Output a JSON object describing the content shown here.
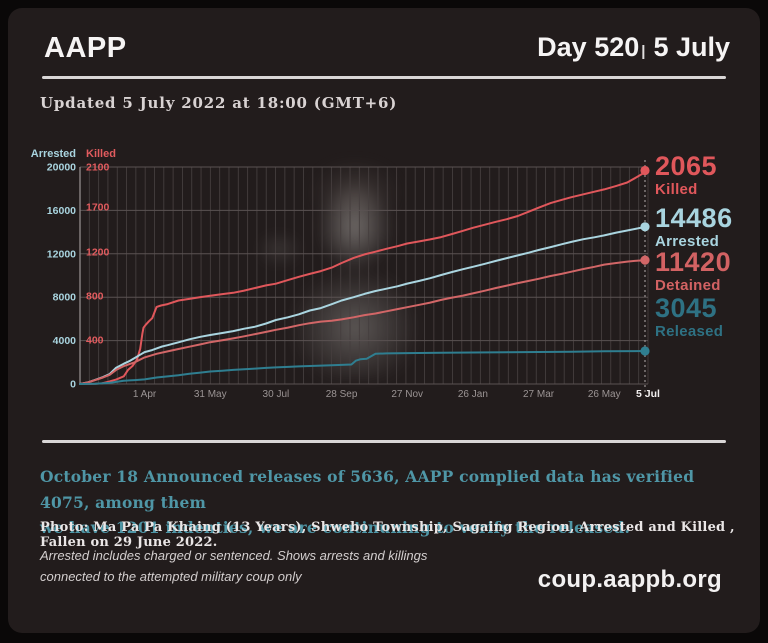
{
  "header": {
    "brand": "AAPP",
    "day_counter": "Day 520",
    "separator": "|",
    "date": "5 July"
  },
  "updated_line": "Updated 5 July 2022 at 18:00 (GMT+6)",
  "chart_data": {
    "type": "line",
    "title": "",
    "grid": true,
    "vertical_gridlines": 62,
    "x_axis": {
      "total_days": 519,
      "labels": [
        {
          "text": "1 Apr",
          "day": 59,
          "emphasis": false
        },
        {
          "text": "31 May",
          "day": 119,
          "emphasis": false
        },
        {
          "text": "30 Jul",
          "day": 179,
          "emphasis": false
        },
        {
          "text": "28 Sep",
          "day": 239,
          "emphasis": false
        },
        {
          "text": "27 Nov",
          "day": 299,
          "emphasis": false
        },
        {
          "text": "26 Jan",
          "day": 359,
          "emphasis": false
        },
        {
          "text": "27 Mar",
          "day": 419,
          "emphasis": false
        },
        {
          "text": "26 May",
          "day": 479,
          "emphasis": false
        },
        {
          "text": "5 Jul",
          "day": 519,
          "emphasis": true
        }
      ]
    },
    "y_axis_left": {
      "title": "Arrested",
      "ticks": [
        0,
        4000,
        8000,
        12000,
        16000,
        20000
      ],
      "range": [
        0,
        20000
      ],
      "color": "#a9d4df"
    },
    "y_axis_inner": {
      "title": "Killed",
      "ticks": [
        400,
        800,
        1200,
        1700,
        2100
      ],
      "range": [
        0,
        2100
      ],
      "color": "#e15b5e"
    },
    "series": [
      {
        "name": "Killed",
        "axis": "killed",
        "color": "#e0575b",
        "label_color": "#e0575b",
        "end_value": 2065,
        "end_value_text": "2065",
        "label": "Killed",
        "points": [
          [
            0,
            0
          ],
          [
            14,
            2
          ],
          [
            20,
            5
          ],
          [
            27,
            23
          ],
          [
            33,
            40
          ],
          [
            40,
            70
          ],
          [
            44,
            130
          ],
          [
            48,
            164
          ],
          [
            52,
            220
          ],
          [
            55,
            320
          ],
          [
            57,
            459
          ],
          [
            58,
            512
          ],
          [
            60,
            538
          ],
          [
            63,
            570
          ],
          [
            66,
            598
          ],
          [
            70,
            701
          ],
          [
            74,
            714
          ],
          [
            80,
            726
          ],
          [
            90,
            759
          ],
          [
            100,
            774
          ],
          [
            110,
            790
          ],
          [
            119,
            802
          ],
          [
            130,
            817
          ],
          [
            140,
            829
          ],
          [
            150,
            849
          ],
          [
            160,
            873
          ],
          [
            170,
            896
          ],
          [
            179,
            912
          ],
          [
            190,
            945
          ],
          [
            200,
            975
          ],
          [
            210,
            1001
          ],
          [
            220,
            1026
          ],
          [
            230,
            1058
          ],
          [
            239,
            1100
          ],
          [
            250,
            1146
          ],
          [
            260,
            1178
          ],
          [
            270,
            1203
          ],
          [
            280,
            1236
          ],
          [
            290,
            1265
          ],
          [
            299,
            1295
          ],
          [
            310,
            1318
          ],
          [
            320,
            1340
          ],
          [
            330,
            1366
          ],
          [
            340,
            1400
          ],
          [
            350,
            1436
          ],
          [
            359,
            1469
          ],
          [
            370,
            1503
          ],
          [
            380,
            1536
          ],
          [
            390,
            1564
          ],
          [
            400,
            1600
          ],
          [
            410,
            1648
          ],
          [
            419,
            1692
          ],
          [
            430,
            1739
          ],
          [
            440,
            1771
          ],
          [
            449,
            1798
          ],
          [
            460,
            1827
          ],
          [
            470,
            1853
          ],
          [
            479,
            1876
          ],
          [
            490,
            1911
          ],
          [
            500,
            1945
          ],
          [
            510,
            2007
          ],
          [
            519,
            2065
          ]
        ]
      },
      {
        "name": "Arrested",
        "axis": "arrested",
        "color": "#aad5e0",
        "label_color": "#a9d4df",
        "end_value": 14486,
        "end_value_text": "14486",
        "label": "Arrested",
        "points": [
          [
            0,
            0
          ],
          [
            7,
            150
          ],
          [
            14,
            384
          ],
          [
            21,
            640
          ],
          [
            27,
            900
          ],
          [
            33,
            1498
          ],
          [
            40,
            1873
          ],
          [
            45,
            2100
          ],
          [
            50,
            2400
          ],
          [
            55,
            2700
          ],
          [
            59,
            2940
          ],
          [
            65,
            3100
          ],
          [
            70,
            3280
          ],
          [
            75,
            3460
          ],
          [
            80,
            3580
          ],
          [
            90,
            3843
          ],
          [
            100,
            4120
          ],
          [
            110,
            4350
          ],
          [
            119,
            4515
          ],
          [
            130,
            4700
          ],
          [
            140,
            4880
          ],
          [
            150,
            5100
          ],
          [
            160,
            5280
          ],
          [
            170,
            5580
          ],
          [
            179,
            5900
          ],
          [
            190,
            6150
          ],
          [
            200,
            6420
          ],
          [
            210,
            6770
          ],
          [
            220,
            7000
          ],
          [
            230,
            7355
          ],
          [
            239,
            7700
          ],
          [
            250,
            8000
          ],
          [
            260,
            8300
          ],
          [
            270,
            8571
          ],
          [
            280,
            8780
          ],
          [
            290,
            9000
          ],
          [
            299,
            9250
          ],
          [
            310,
            9500
          ],
          [
            320,
            9750
          ],
          [
            330,
            10050
          ],
          [
            340,
            10320
          ],
          [
            350,
            10580
          ],
          [
            359,
            10800
          ],
          [
            370,
            11080
          ],
          [
            380,
            11350
          ],
          [
            390,
            11600
          ],
          [
            400,
            11850
          ],
          [
            410,
            12100
          ],
          [
            419,
            12350
          ],
          [
            430,
            12620
          ],
          [
            440,
            12880
          ],
          [
            449,
            13100
          ],
          [
            460,
            13350
          ],
          [
            470,
            13520
          ],
          [
            479,
            13700
          ],
          [
            490,
            13950
          ],
          [
            500,
            14150
          ],
          [
            510,
            14350
          ],
          [
            519,
            14486
          ]
        ]
      },
      {
        "name": "Detained",
        "axis": "arrested",
        "color": "#d26667",
        "label_color": "#d26263",
        "end_value": 11420,
        "end_value_text": "11420",
        "label": "Detained",
        "points": [
          [
            0,
            0
          ],
          [
            7,
            140
          ],
          [
            14,
            360
          ],
          [
            21,
            600
          ],
          [
            27,
            840
          ],
          [
            33,
            1300
          ],
          [
            40,
            1650
          ],
          [
            50,
            2000
          ],
          [
            59,
            2450
          ],
          [
            70,
            2780
          ],
          [
            80,
            3000
          ],
          [
            90,
            3230
          ],
          [
            100,
            3440
          ],
          [
            110,
            3650
          ],
          [
            119,
            3850
          ],
          [
            130,
            4030
          ],
          [
            140,
            4200
          ],
          [
            150,
            4400
          ],
          [
            160,
            4600
          ],
          [
            170,
            4800
          ],
          [
            179,
            5000
          ],
          [
            190,
            5200
          ],
          [
            200,
            5420
          ],
          [
            210,
            5600
          ],
          [
            220,
            5750
          ],
          [
            230,
            5830
          ],
          [
            239,
            5950
          ],
          [
            250,
            6150
          ],
          [
            260,
            6350
          ],
          [
            270,
            6500
          ],
          [
            280,
            6700
          ],
          [
            290,
            6900
          ],
          [
            299,
            7080
          ],
          [
            310,
            7300
          ],
          [
            320,
            7500
          ],
          [
            330,
            7750
          ],
          [
            340,
            7960
          ],
          [
            350,
            8150
          ],
          [
            359,
            8350
          ],
          [
            370,
            8600
          ],
          [
            380,
            8850
          ],
          [
            390,
            9070
          ],
          [
            400,
            9300
          ],
          [
            410,
            9500
          ],
          [
            419,
            9700
          ],
          [
            430,
            9950
          ],
          [
            440,
            10150
          ],
          [
            449,
            10350
          ],
          [
            460,
            10600
          ],
          [
            470,
            10800
          ],
          [
            479,
            11000
          ],
          [
            490,
            11150
          ],
          [
            500,
            11280
          ],
          [
            510,
            11370
          ],
          [
            519,
            11420
          ]
        ]
      },
      {
        "name": "Released",
        "axis": "arrested",
        "color": "#2f7e90",
        "label_color": "#2e7183",
        "end_value": 3045,
        "end_value_text": "3045",
        "label": "Released",
        "points": [
          [
            0,
            0
          ],
          [
            14,
            30
          ],
          [
            27,
            100
          ],
          [
            40,
            300
          ],
          [
            50,
            360
          ],
          [
            59,
            420
          ],
          [
            70,
            600
          ],
          [
            80,
            700
          ],
          [
            90,
            803
          ],
          [
            100,
            950
          ],
          [
            110,
            1050
          ],
          [
            119,
            1150
          ],
          [
            130,
            1230
          ],
          [
            140,
            1300
          ],
          [
            150,
            1360
          ],
          [
            160,
            1420
          ],
          [
            170,
            1480
          ],
          [
            179,
            1530
          ],
          [
            190,
            1580
          ],
          [
            200,
            1620
          ],
          [
            210,
            1660
          ],
          [
            220,
            1700
          ],
          [
            230,
            1730
          ],
          [
            239,
            1760
          ],
          [
            248,
            1800
          ],
          [
            252,
            2150
          ],
          [
            256,
            2280
          ],
          [
            262,
            2330
          ],
          [
            270,
            2780
          ],
          [
            280,
            2820
          ],
          [
            299,
            2850
          ],
          [
            330,
            2880
          ],
          [
            359,
            2900
          ],
          [
            390,
            2930
          ],
          [
            419,
            2950
          ],
          [
            449,
            2980
          ],
          [
            479,
            3010
          ],
          [
            519,
            3045
          ]
        ]
      }
    ]
  },
  "note": {
    "line1": "October 18 Announced releases of 5636, AAPP complied data has verified 4075, among them",
    "line2": "we have 1201 indenties, we are continuning to verify the released.",
    "color": "#4f96a6"
  },
  "photo_caption": "Photo:  Ma Pa Pa Khaing (13 Years), Shwebo Township, Sagaing Region, Arrested and Killed , Fallen on 29 June 2022.",
  "footnote_lines": {
    "0": "Arrested includes charged or sentenced. Shows arrests and killings",
    "1": "connected to the attempted military coup only"
  },
  "url": "coup.aappb.org",
  "colors": {
    "outer_background": "#0a0808",
    "card_background": "#221c1c",
    "text_white": "#f6f4f4",
    "grid_vertical": "#453e3e",
    "grid_horizontal": "#5a5252",
    "x_label_gray": "#9b9494",
    "note_teal": "#4f96a6"
  }
}
